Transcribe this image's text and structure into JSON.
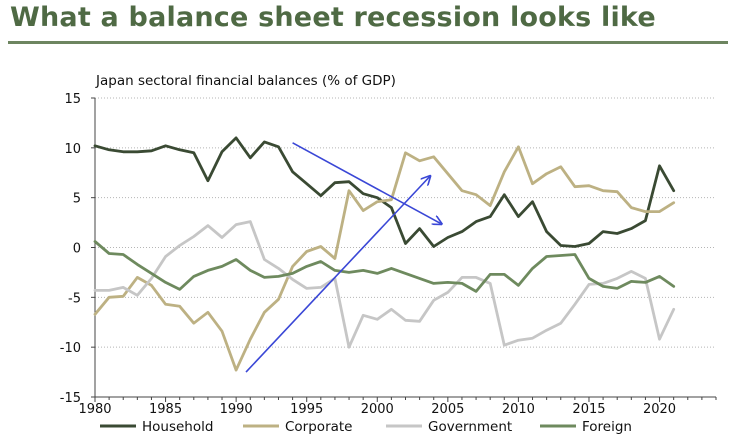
{
  "slide": {
    "title": "What a balance sheet recession looks like",
    "title_color": "#4f6a44"
  },
  "chart_data": {
    "type": "line",
    "title": "Japan sectoral financial balances (% of GDP)",
    "xlabel": "",
    "ylabel": "",
    "xlim": [
      1980,
      2024
    ],
    "ylim": [
      -15,
      15
    ],
    "xticks": [
      1980,
      1985,
      1990,
      1995,
      2000,
      2005,
      2010,
      2015,
      2020
    ],
    "yticks": [
      15,
      10,
      5,
      0,
      -5,
      -10,
      -15
    ],
    "grid": true,
    "legend_position": "bottom",
    "x": [
      1980,
      1981,
      1982,
      1983,
      1984,
      1985,
      1986,
      1987,
      1988,
      1989,
      1990,
      1991,
      1992,
      1993,
      1994,
      1995,
      1996,
      1997,
      1998,
      1999,
      2000,
      2001,
      2002,
      2003,
      2004,
      2005,
      2006,
      2007,
      2008,
      2009,
      2010,
      2011,
      2012,
      2013,
      2014,
      2015,
      2016,
      2017,
      2018,
      2019,
      2020,
      2021
    ],
    "series": [
      {
        "name": "Household",
        "color": "#3a4a33",
        "values": [
          10.2,
          9.8,
          9.6,
          9.6,
          9.7,
          10.2,
          9.8,
          9.5,
          6.7,
          9.6,
          11.0,
          9.0,
          10.6,
          10.1,
          7.6,
          6.4,
          5.2,
          6.5,
          6.6,
          5.4,
          5.0,
          4.0,
          0.4,
          1.9,
          0.1,
          1.0,
          1.6,
          2.6,
          3.1,
          5.3,
          3.1,
          4.6,
          1.6,
          0.2,
          0.1,
          0.4,
          1.6,
          1.4,
          1.9,
          2.7,
          8.2,
          5.7
        ]
      },
      {
        "name": "Corporate",
        "color": "#bdb183",
        "values": [
          -6.7,
          -5.0,
          -4.9,
          -3.0,
          -3.8,
          -5.7,
          -5.9,
          -7.6,
          -6.5,
          -8.4,
          -12.3,
          -9.2,
          -6.5,
          -5.2,
          -1.9,
          -0.4,
          0.1,
          -1.1,
          5.7,
          3.7,
          4.6,
          4.8,
          9.5,
          8.7,
          9.1,
          7.4,
          5.7,
          5.3,
          4.2,
          7.6,
          10.1,
          6.4,
          7.4,
          8.1,
          6.1,
          6.2,
          5.7,
          5.6,
          4.0,
          3.6,
          3.6,
          4.5
        ]
      },
      {
        "name": "Government",
        "color": "#c6c6c6",
        "values": [
          -4.3,
          -4.3,
          -4.0,
          -4.8,
          -3.1,
          -0.9,
          0.2,
          1.1,
          2.2,
          1.0,
          2.3,
          2.6,
          -1.2,
          -2.1,
          -3.2,
          -4.1,
          -4.0,
          -3.1,
          -10.0,
          -6.8,
          -7.2,
          -6.2,
          -7.3,
          -7.4,
          -5.3,
          -4.5,
          -3.0,
          -3.0,
          -3.6,
          -9.8,
          -9.3,
          -9.1,
          -8.3,
          -7.6,
          -5.7,
          -3.7,
          -3.6,
          -3.1,
          -2.4,
          -3.1,
          -9.2,
          -6.2
        ]
      },
      {
        "name": "Foreign",
        "color": "#6e8a5e",
        "values": [
          0.6,
          -0.6,
          -0.7,
          -1.7,
          -2.6,
          -3.5,
          -4.2,
          -2.9,
          -2.3,
          -1.9,
          -1.2,
          -2.3,
          -3.0,
          -2.9,
          -2.6,
          -1.9,
          -1.4,
          -2.3,
          -2.5,
          -2.3,
          -2.6,
          -2.1,
          -2.6,
          -3.1,
          -3.6,
          -3.5,
          -3.6,
          -4.4,
          -2.7,
          -2.7,
          -3.8,
          -2.1,
          -0.9,
          -0.8,
          -0.7,
          -3.1,
          -3.9,
          -4.1,
          -3.4,
          -3.5,
          -2.9,
          -3.9
        ]
      }
    ],
    "annotations": [
      {
        "type": "arrow",
        "color": "#3a47d6",
        "from": [
          1994,
          10.5
        ],
        "to": [
          2004.5,
          2.4
        ]
      },
      {
        "type": "arrow",
        "color": "#3a47d6",
        "from": [
          1990.7,
          -12.5
        ],
        "to": [
          2003.7,
          7.1
        ]
      }
    ]
  }
}
